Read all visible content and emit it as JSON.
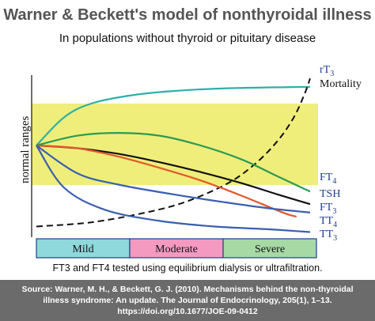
{
  "title": "Warner & Beckett's model of nonthyroidal illness",
  "subtitle": "In populations without thyroid or pituitary disease",
  "footnote": "FT3 and FT4 tested using equilibrium dialysis or ultrafiltration.",
  "source_lines": [
    "Source: Warner, M. H., & Beckett, G. J. (2010). Mechanisms behind the non-thyroidal",
    "illness syndrome: An update. The Journal of Endocrinology, 205(1), 1–13.",
    "https://doi.org/10.1677/JOE-09-0412"
  ],
  "chart_data": {
    "type": "line",
    "ylabel": "normal ranges",
    "normal_range": [
      0.42,
      0.78
    ],
    "x_range": [
      0,
      1
    ],
    "y_range": [
      0,
      1.2
    ],
    "severity_bands": [
      {
        "label": "Mild",
        "color": "#8fd8dc"
      },
      {
        "label": "Moderate",
        "color": "#f49ac1"
      },
      {
        "label": "Severe",
        "color": "#a6d9a4"
      }
    ],
    "series": [
      {
        "name": "rT3",
        "color": "#2eb0a8",
        "dashed": false,
        "x": [
          0,
          0.1,
          0.2,
          0.35,
          0.5,
          0.7,
          1.0
        ],
        "y": [
          0.6,
          0.8,
          0.9,
          0.96,
          0.99,
          1.01,
          1.02
        ]
      },
      {
        "name": "Mortality",
        "color": "#111111",
        "dashed": true,
        "x": [
          0,
          0.2,
          0.4,
          0.55,
          0.7,
          0.8,
          0.88,
          0.94,
          0.98,
          1.0
        ],
        "y": [
          0.02,
          0.05,
          0.12,
          0.2,
          0.33,
          0.47,
          0.63,
          0.8,
          0.97,
          1.08
        ]
      },
      {
        "name": "FT4",
        "color": "#2c9a54",
        "dashed": false,
        "x": [
          0,
          0.15,
          0.3,
          0.45,
          0.6,
          0.75,
          0.88,
          1.0
        ],
        "y": [
          0.6,
          0.67,
          0.69,
          0.67,
          0.6,
          0.5,
          0.38,
          0.27
        ]
      },
      {
        "name": "TSH",
        "color": "#111111",
        "dashed": false,
        "x": [
          0,
          0.15,
          0.3,
          0.45,
          0.6,
          0.75,
          0.88,
          1.0
        ],
        "y": [
          0.6,
          0.58,
          0.54,
          0.48,
          0.41,
          0.33,
          0.25,
          0.18
        ]
      },
      {
        "name": "FT3",
        "color": "#e4572e",
        "dashed": false,
        "x": [
          0,
          0.15,
          0.3,
          0.45,
          0.6,
          0.75,
          0.9,
          0.95
        ],
        "y": [
          0.6,
          0.58,
          0.52,
          0.44,
          0.35,
          0.24,
          0.12,
          0.09
        ]
      },
      {
        "name": "TT4",
        "color": "#3a5fb0",
        "dashed": false,
        "x": [
          0,
          0.15,
          0.3,
          0.5,
          0.7,
          0.85,
          1.0
        ],
        "y": [
          0.6,
          0.4,
          0.32,
          0.25,
          0.19,
          0.15,
          0.12
        ]
      },
      {
        "name": "TT3",
        "color": "#3a5fb0",
        "dashed": false,
        "x": [
          0,
          0.1,
          0.25,
          0.45,
          0.65,
          0.85,
          1.0
        ],
        "y": [
          0.6,
          0.3,
          0.14,
          0.06,
          0.02,
          0.0,
          -0.02
        ]
      }
    ],
    "series_label_texts": [
      {
        "base": "rT",
        "sub": "3",
        "line2": ""
      },
      {
        "base": "Mortality",
        "sub": "",
        "line2": ""
      },
      {
        "base": "FT",
        "sub": "4",
        "line2": ""
      },
      {
        "base": "TSH",
        "sub": "",
        "line2": ""
      },
      {
        "base": "FT",
        "sub": "3",
        "line2": ""
      },
      {
        "base": "TT",
        "sub": "4",
        "line2": ""
      },
      {
        "base": "TT",
        "sub": "3",
        "line2": ""
      }
    ],
    "grid": false,
    "legend": "right"
  }
}
